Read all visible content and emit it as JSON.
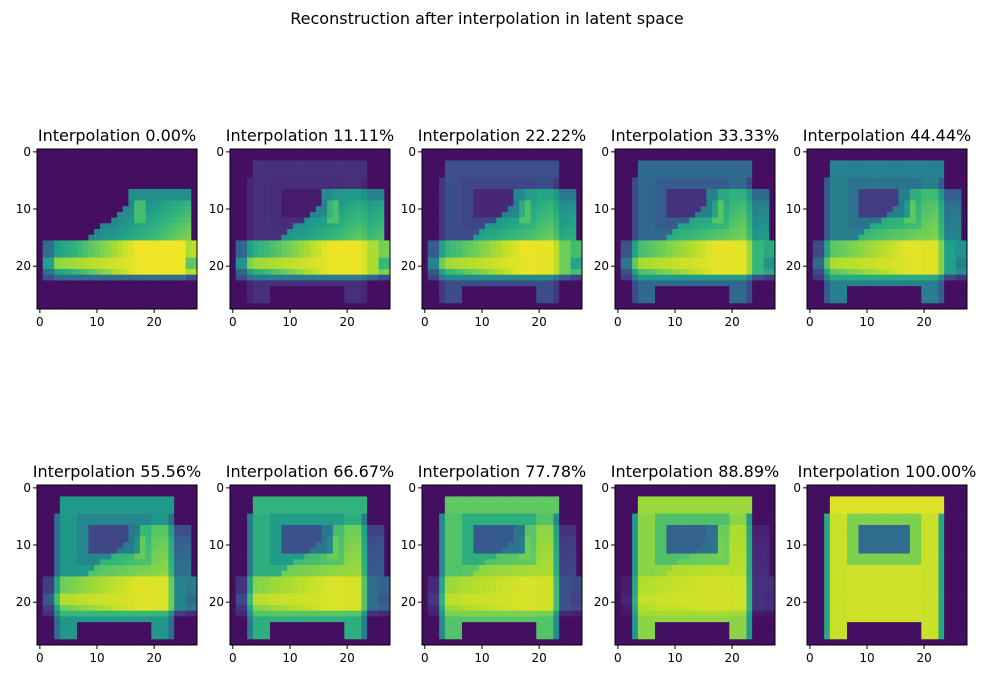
{
  "chart_data": {
    "type": "heatmap",
    "title": "Reconstruction after interpolation in latent space",
    "colormap": "viridis",
    "image_size": 28,
    "grid": false,
    "x_ticks": [
      "0",
      "10",
      "20"
    ],
    "y_ticks": [
      "0",
      "10",
      "20"
    ],
    "xlim": [
      -0.5,
      27.5
    ],
    "ylim": [
      27.5,
      -0.5
    ],
    "panels": [
      {
        "title": "Interpolation 0.00%",
        "interpolation": 0.0
      },
      {
        "title": "Interpolation 11.11%",
        "interpolation": 0.1111
      },
      {
        "title": "Interpolation 22.22%",
        "interpolation": 0.2222
      },
      {
        "title": "Interpolation 33.33%",
        "interpolation": 0.3333
      },
      {
        "title": "Interpolation 44.44%",
        "interpolation": 0.4444
      },
      {
        "title": "Interpolation 55.56%",
        "interpolation": 0.5556
      },
      {
        "title": "Interpolation 66.67%",
        "interpolation": 0.6667
      },
      {
        "title": "Interpolation 77.78%",
        "interpolation": 0.7778
      },
      {
        "title": "Interpolation 88.89%",
        "interpolation": 0.8889
      },
      {
        "title": "Interpolation 100.00%",
        "interpolation": 1.0
      }
    ]
  }
}
